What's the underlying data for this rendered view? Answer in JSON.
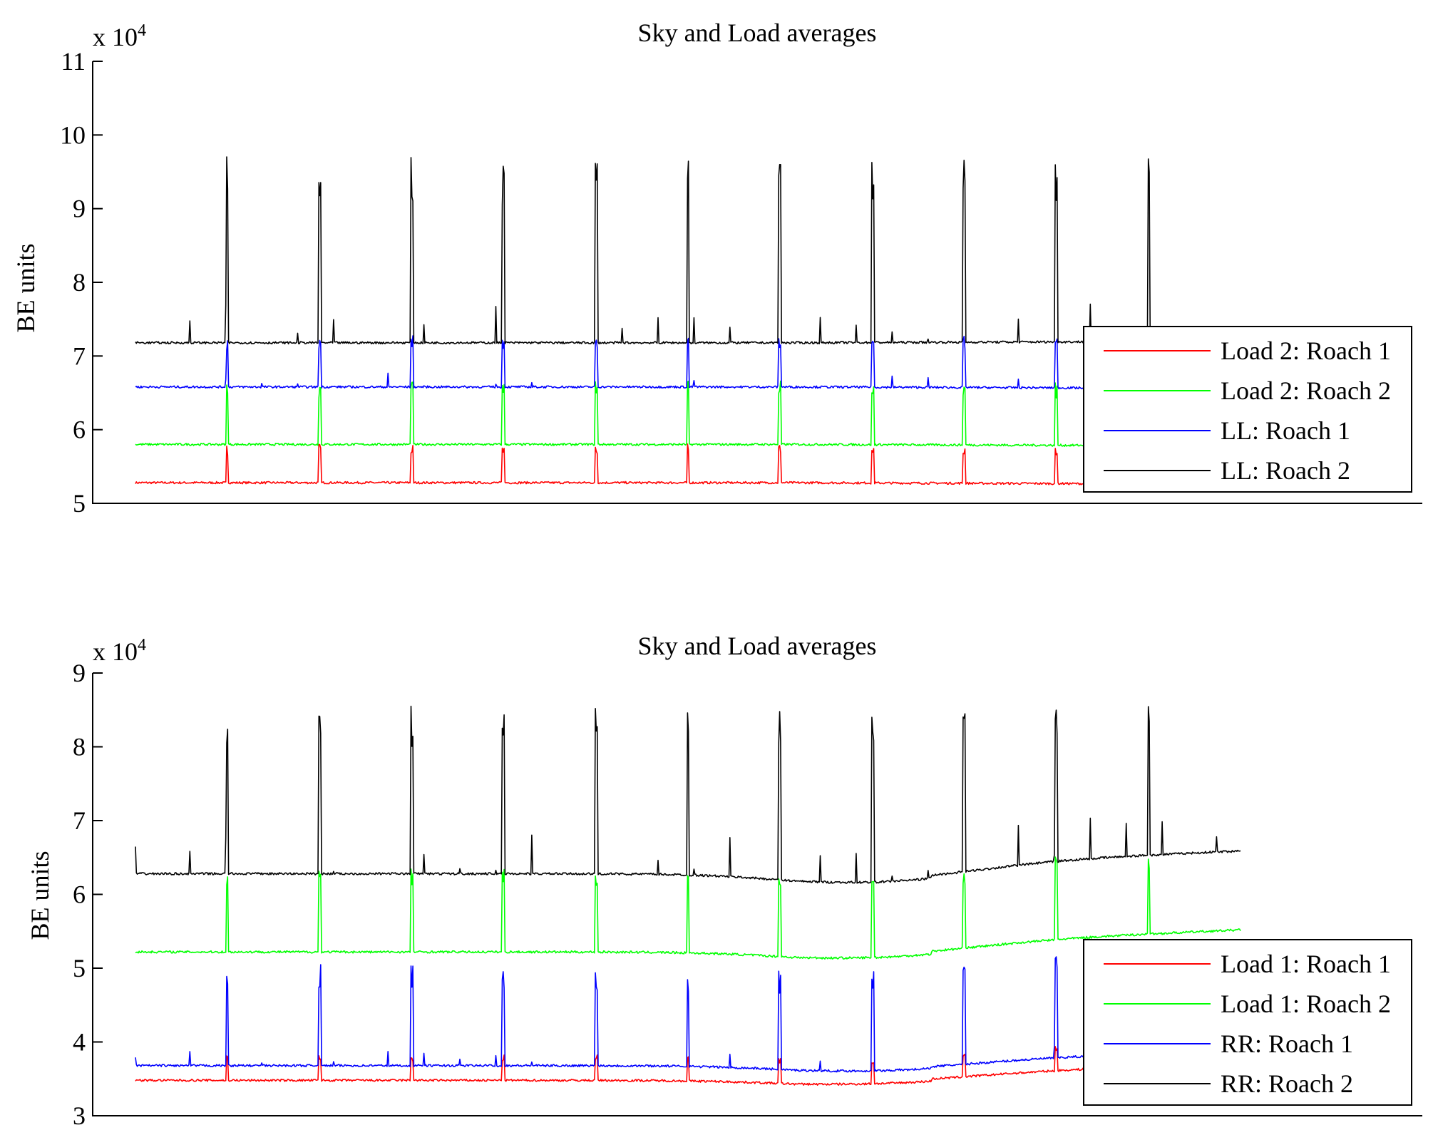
{
  "chart_data": [
    {
      "type": "line",
      "title": "Sky and Load averages",
      "ylabel": "BE units",
      "xlabel": "",
      "y_multiplier_label": "x 10",
      "y_multiplier_exponent": "4",
      "ylim": [
        5,
        11
      ],
      "yticks": [
        "5",
        "6",
        "7",
        "8",
        "9",
        "10",
        "11"
      ],
      "legend_position": "right",
      "x_points": 1200,
      "spike_positions": [
        0.083,
        0.167,
        0.25,
        0.333,
        0.417,
        0.5,
        0.583,
        0.667,
        0.75,
        0.833,
        0.917
      ],
      "series": [
        {
          "name": "Load 2: Roach 1",
          "color": "#ff0000",
          "baseline": 5.28,
          "end": 5.26,
          "spike": 0.45
        },
        {
          "name": "Load 2: Roach 2",
          "color": "#00ff00",
          "baseline": 5.8,
          "end": 5.78,
          "spike": 0.75
        },
        {
          "name": "LL: Roach 1",
          "color": "#0000ff",
          "baseline": 6.58,
          "end": 6.56,
          "spike": 0.6
        },
        {
          "name": "LL: Roach 2",
          "color": "#000000",
          "baseline": 7.18,
          "end": 7.2,
          "spike": 2.2
        }
      ]
    },
    {
      "type": "line",
      "title": "Sky and Load averages",
      "ylabel": "BE units",
      "xlabel": "",
      "y_multiplier_label": "x 10",
      "y_multiplier_exponent": "4",
      "ylim": [
        3,
        9
      ],
      "yticks": [
        "3",
        "4",
        "5",
        "6",
        "7",
        "8",
        "9"
      ],
      "legend_position": "right",
      "x_points": 1200,
      "spike_positions": [
        0.083,
        0.167,
        0.25,
        0.333,
        0.417,
        0.5,
        0.583,
        0.667,
        0.75,
        0.833,
        0.917
      ],
      "series": [
        {
          "name": "Load 1: Roach 1",
          "color": "#ff0000",
          "baseline": 3.48,
          "end": 3.68,
          "dip": 3.4,
          "spike": 0.3
        },
        {
          "name": "Load 1: Roach 2",
          "color": "#00ff00",
          "baseline": 5.22,
          "end": 5.48,
          "dip": 5.1,
          "spike": 1.0
        },
        {
          "name": "RR: Roach 1",
          "color": "#0000ff",
          "baseline": 3.68,
          "end": 3.85,
          "dip": 3.58,
          "spike": 1.2
        },
        {
          "name": "RR: Roach 2",
          "color": "#000000",
          "baseline": 6.28,
          "end": 6.55,
          "dip": 6.12,
          "spike": 2.0
        }
      ]
    }
  ]
}
